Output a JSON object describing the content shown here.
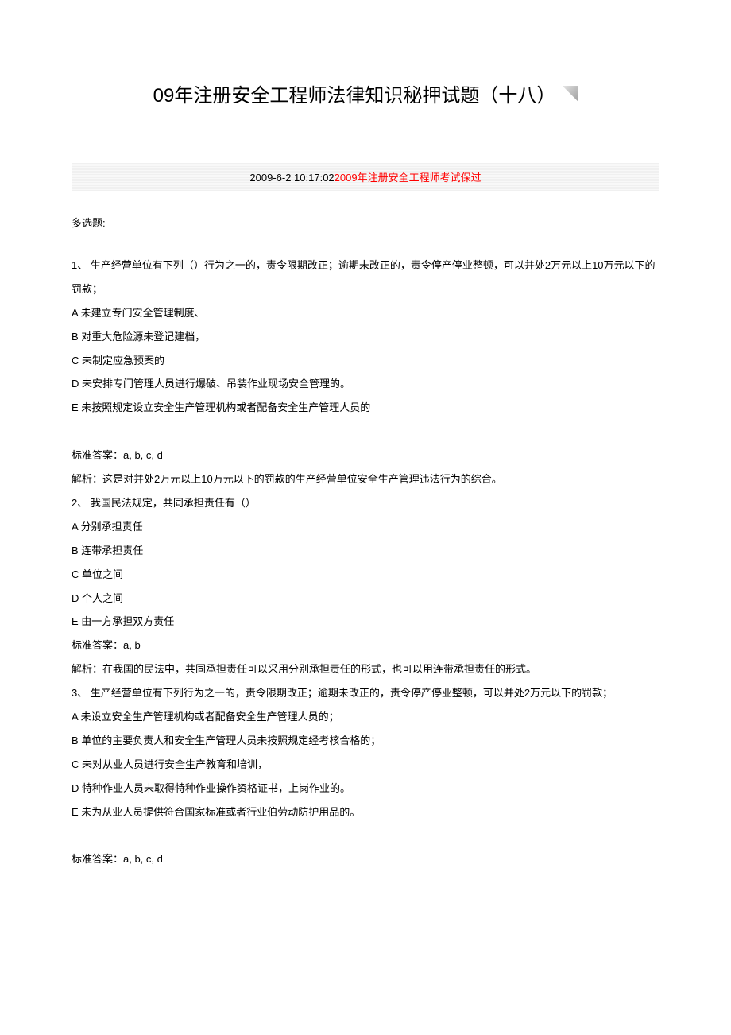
{
  "title": "09年注册安全工程师法律知识秘押试题（十八）",
  "meta": {
    "date": "2009-6-2 10:17:02",
    "link_text": "2009年注册安全工程师考试保过"
  },
  "section_label": "多选题:",
  "q1": {
    "question": "1、 生产经营单位有下列（）行为之一的，责令限期改正；逾期未改正的，责令停产停业整顿，可以并处2万元以上10万元以下的罚款；",
    "opt_a": "A 未建立专门安全管理制度、",
    "opt_b": "B 对重大危险源未登记建档，",
    "opt_c": "C 未制定应急预案的",
    "opt_d": "D 未安排专门管理人员进行爆破、吊装作业现场安全管理的。",
    "opt_e": "E 未按照规定设立安全生产管理机构或者配备安全生产管理人员的",
    "answer": "标准答案：a, b, c, d",
    "analysis": "解析：这是对并处2万元以上10万元以下的罚款的生产经营单位安全生产管理违法行为的综合。"
  },
  "q2": {
    "question": "2、 我国民法规定，共同承担责任有（）",
    "opt_a": "A 分别承担责任",
    "opt_b": "B 连带承担责任",
    "opt_c": "C 单位之间",
    "opt_d": "D 个人之间",
    "opt_e": "E 由一方承担双方责任",
    "answer": "标准答案：a, b",
    "analysis": "解析：在我国的民法中，共同承担责任可以采用分别承担责任的形式，也可以用连带承担责任的形式。"
  },
  "q3": {
    "question": "3、 生产经营单位有下列行为之一的，责令限期改正；逾期未改正的，责令停产停业整顿，可以并处2万元以下的罚款；",
    "opt_a": "A 未设立安全生产管理机构或者配备安全生产管理人员的；",
    "opt_b": "B 单位的主要负责人和安全生产管理人员未按照规定经考核合格的；",
    "opt_c": "C 未对从业人员进行安全生产教育和培训，",
    "opt_d": "D 特种作业人员未取得特种作业操作资格证书，上岗作业的。",
    "opt_e": "E 未为从业人员提供符合国家标准或者行业伯劳动防护用品的。",
    "answer": "标准答案：a, b, c, d"
  },
  "styles": {
    "body_bg": "#ffffff",
    "title_fontsize": 24,
    "title_color": "#000000",
    "text_fontsize": 13,
    "text_color": "#000000",
    "link_color": "#ff0000",
    "meta_bg": "#f0f0f0",
    "line_height": 2.3
  }
}
